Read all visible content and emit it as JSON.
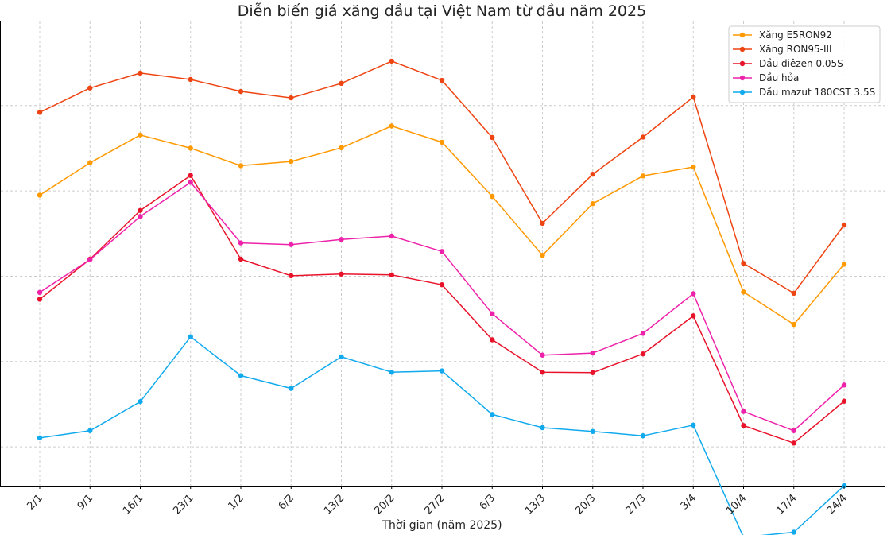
{
  "chart_data": {
    "type": "line",
    "title": "Diễn biến giá xăng dầu tại Việt Nam từ đầu năm 2025",
    "xlabel": "Thời gian (năm 2025)",
    "ylabel": "",
    "grid": true,
    "legend_position": "top-right",
    "categories": [
      "2/1",
      "9/1",
      "16/1",
      "23/1",
      "1/2",
      "6/2",
      "13/2",
      "20/2",
      "27/2",
      "6/3",
      "13/3",
      "20/3",
      "27/3",
      "3/4",
      "10/4",
      "17/4",
      "24/4"
    ],
    "ylim": [
      -19.1,
      89.7
    ],
    "y_gridlines": [
      -10,
      10,
      30,
      50,
      70
    ],
    "series": [
      {
        "name": "Xăng E5RON92",
        "color": "#ff9900",
        "values": [
          49.0,
          56.6,
          63.1,
          60.0,
          55.9,
          56.9,
          60.1,
          65.2,
          61.4,
          48.7,
          34.9,
          47.0,
          53.5,
          55.6,
          26.3,
          18.7,
          32.8
        ]
      },
      {
        "name": "Xăng RON95-III",
        "color": "#ee4411",
        "values": [
          68.4,
          74.1,
          77.6,
          76.1,
          73.3,
          71.8,
          75.2,
          80.4,
          75.9,
          62.5,
          42.4,
          53.9,
          62.6,
          72.0,
          33.0,
          26.0,
          42.0
        ]
      },
      {
        "name": "Dầu điêzen 0.05S",
        "color": "#e8132a",
        "values": [
          24.6,
          34.0,
          45.4,
          53.6,
          34.0,
          30.1,
          30.5,
          30.3,
          28.0,
          15.1,
          7.5,
          7.4,
          11.8,
          20.7,
          -5.0,
          -9.1,
          0.7
        ]
      },
      {
        "name": "Dầu hỏa",
        "color": "#ee22aa",
        "values": [
          26.2,
          33.9,
          44.0,
          52.0,
          37.8,
          37.4,
          38.6,
          39.4,
          35.8,
          21.2,
          11.5,
          12.0,
          16.6,
          25.9,
          -1.7,
          -6.2,
          4.5
        ]
      },
      {
        "name": "Dầu mazut 180CST 3.5S",
        "color": "#11aaee",
        "values": [
          -7.9,
          -6.2,
          0.6,
          15.8,
          6.7,
          3.7,
          11.1,
          7.5,
          7.8,
          -2.4,
          -5.5,
          -6.4,
          -7.4,
          -4.9,
          -31.2,
          -30.0,
          -19.1
        ]
      }
    ]
  }
}
